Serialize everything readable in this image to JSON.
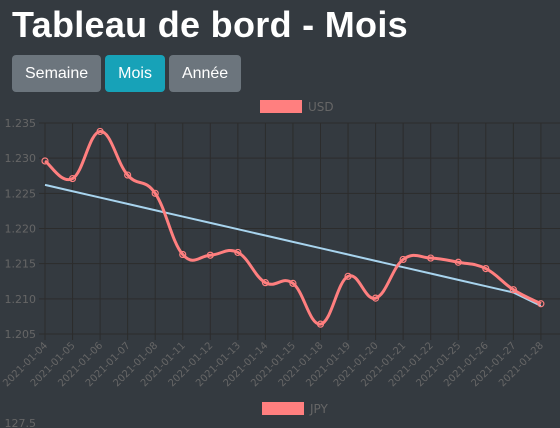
{
  "page": {
    "title": "Tableau de bord - Mois"
  },
  "toolbar": {
    "buttons": [
      {
        "id": "week",
        "label": "Semaine",
        "active": false
      },
      {
        "id": "month",
        "label": "Mois",
        "active": true
      },
      {
        "id": "year",
        "label": "Année",
        "active": false
      }
    ]
  },
  "colors": {
    "background": "#343a40",
    "button_default": "#6c757d",
    "button_active": "#17a2b8",
    "series_line": "#ff7f7f",
    "trend_line": "#a8d4ee",
    "grid": "#2c2c2c",
    "tick_text": "#666666"
  },
  "chart_data": [
    {
      "type": "line",
      "legend": {
        "position": "top",
        "label": "USD"
      },
      "categories": [
        "2021-01-04",
        "2021-01-05",
        "2021-01-06",
        "2021-01-07",
        "2021-01-08",
        "2021-01-11",
        "2021-01-12",
        "2021-01-13",
        "2021-01-14",
        "2021-01-15",
        "2021-01-18",
        "2021-01-19",
        "2021-01-20",
        "2021-01-21",
        "2021-01-22",
        "2021-01-25",
        "2021-01-26",
        "2021-01-27",
        "2021-01-28"
      ],
      "series": [
        {
          "name": "USD",
          "values": [
            1.2296,
            1.2271,
            1.2338,
            1.2276,
            1.225,
            1.2163,
            1.2162,
            1.2166,
            1.2123,
            1.2122,
            1.2064,
            1.2132,
            1.2101,
            1.2156,
            1.2158,
            1.2152,
            1.2143,
            1.2113,
            1.2093
          ]
        },
        {
          "name": "",
          "kind": "trend",
          "values": [
            1.2262,
            1.2253,
            1.2244,
            1.2235,
            1.2226,
            1.2217,
            1.2208,
            1.2199,
            1.219,
            1.2181,
            1.2172,
            1.2163,
            1.2154,
            1.2145,
            1.2136,
            1.2127,
            1.2118,
            1.2109,
            1.209
          ]
        }
      ],
      "y_ticks": [
        "1.205",
        "1.210",
        "1.215",
        "1.220",
        "1.225",
        "1.230",
        "1.235"
      ],
      "ylim": [
        1.205,
        1.235
      ],
      "grid": true
    },
    {
      "type": "line",
      "legend": {
        "position": "top",
        "label": "JPY"
      },
      "y_ticks": [
        "127.5"
      ]
    }
  ]
}
